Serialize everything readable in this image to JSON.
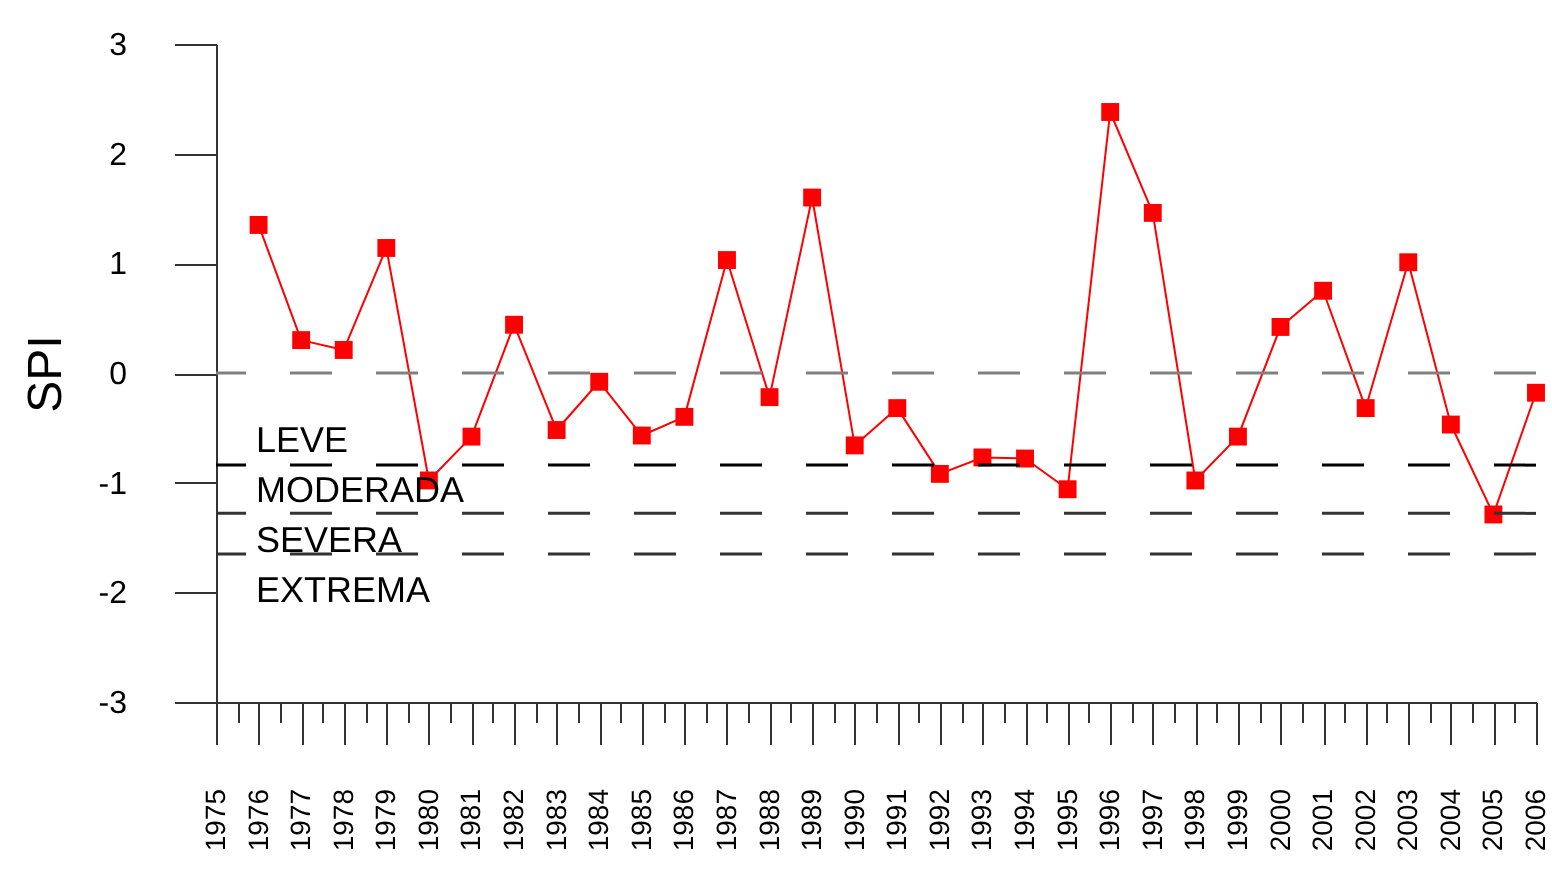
{
  "chart_data": {
    "type": "line",
    "ylabel": "SPI",
    "x": [
      1976,
      1977,
      1978,
      1979,
      1980,
      1981,
      1982,
      1983,
      1984,
      1985,
      1986,
      1987,
      1988,
      1989,
      1990,
      1991,
      1992,
      1993,
      1994,
      1995,
      1996,
      1997,
      1998,
      1999,
      2000,
      2001,
      2002,
      2003,
      2004,
      2005,
      2006
    ],
    "series": [
      {
        "color": "#ff0000",
        "values": [
          1.35,
          0.3,
          0.21,
          1.14,
          -0.98,
          -0.58,
          0.44,
          -0.52,
          -0.08,
          -0.57,
          -0.4,
          1.03,
          -0.22,
          1.6,
          -0.66,
          -0.32,
          -0.92,
          -0.77,
          -0.78,
          -1.06,
          2.38,
          1.46,
          -0.98,
          -0.58,
          0.42,
          0.75,
          -0.32,
          1.01,
          -0.47,
          -1.29,
          -0.18
        ]
      }
    ],
    "xlim": [
      1975,
      2006
    ],
    "xticks": [
      1975,
      {
        "value": 1975.5,
        "label": null
      },
      1976,
      {
        "value": 1976.5,
        "label": null
      },
      1977,
      {
        "value": 1977.5,
        "label": null
      },
      1978,
      {
        "value": 1978.5,
        "label": null
      },
      1979,
      {
        "value": 1979.5,
        "label": null
      },
      1980,
      {
        "value": 1980.5,
        "label": null
      },
      1981,
      {
        "value": 1981.5,
        "label": null
      },
      1982,
      {
        "value": 1982.5,
        "label": null
      },
      1983,
      {
        "value": 1983.5,
        "label": null
      },
      1984,
      {
        "value": 1984.5,
        "label": null
      },
      1985,
      {
        "value": 1985.5,
        "label": null
      },
      1986,
      {
        "value": 1986.5,
        "label": null
      },
      1987,
      {
        "value": 1987.5,
        "label": null
      },
      1988,
      {
        "value": 1988.5,
        "label": null
      },
      1989,
      {
        "value": 1989.5,
        "label": null
      },
      1990,
      {
        "value": 1990.5,
        "label": null
      },
      1991,
      {
        "value": 1991.5,
        "label": null
      },
      1992,
      {
        "value": 1992.5,
        "label": null
      },
      1993,
      {
        "value": 1993.5,
        "label": null
      },
      1994,
      {
        "value": 1994.5,
        "label": null
      },
      1995,
      {
        "value": 1995.5,
        "label": null
      },
      1996,
      {
        "value": 1996.5,
        "label": null
      },
      1997,
      {
        "value": 1997.5,
        "label": null
      },
      1998,
      {
        "value": 1998.5,
        "label": null
      },
      1999,
      {
        "value": 1999.5,
        "label": null
      },
      2000,
      {
        "value": 2000.5,
        "label": null
      },
      2001,
      {
        "value": 2001.5,
        "label": null
      },
      2002,
      {
        "value": 2002.5,
        "label": null
      },
      2003,
      {
        "value": 2003.5,
        "label": null
      },
      2004,
      {
        "value": 2004.5,
        "label": null
      },
      2005,
      {
        "value": 2005.5,
        "label": null
      },
      2006
    ],
    "ylim": [
      -3,
      3
    ],
    "yticks": [
      -3,
      -2,
      -1,
      0,
      1,
      2,
      3
    ],
    "marker": "square",
    "grid": false,
    "ref_lines": [
      {
        "axis": "y",
        "value": 0,
        "color": "#808080",
        "line_style": "dashed"
      },
      {
        "axis": "y",
        "value": -0.84,
        "color": "#000000",
        "line_style": "dashed"
      },
      {
        "axis": "y",
        "value": -1.28,
        "color": "#333333",
        "line_style": "dashed"
      },
      {
        "axis": "y",
        "value": -1.65,
        "color": "#333333",
        "line_style": "dashed"
      }
    ],
    "annotations": [
      "LEVE",
      "MODERADA",
      "SEVERA",
      "EXTREMA"
    ]
  }
}
